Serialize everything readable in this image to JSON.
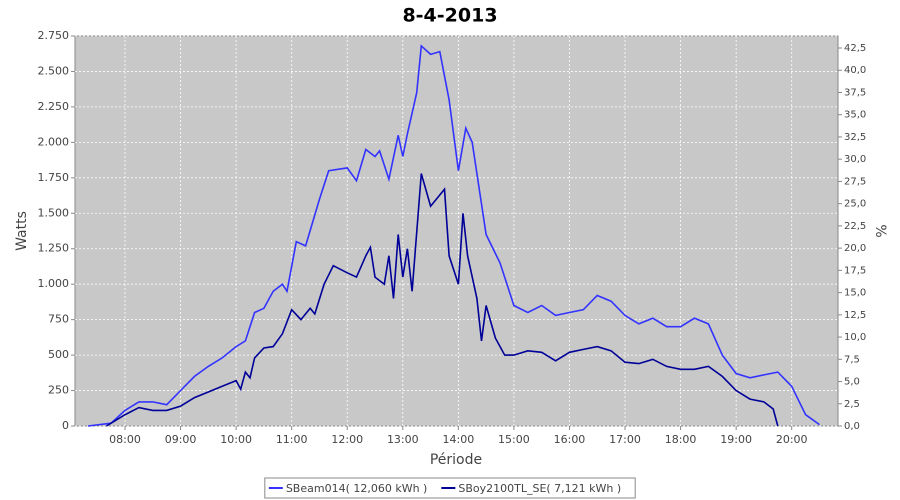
{
  "chart_data": {
    "type": "line",
    "title": "8-4-2013",
    "x_label": "Période",
    "y_label": "Watts",
    "y2_label": "%",
    "xlim": [
      "07:06",
      "20:50"
    ],
    "xticks": [
      "08:00",
      "09:00",
      "10:00",
      "11:00",
      "12:00",
      "13:00",
      "14:00",
      "15:00",
      "16:00",
      "17:00",
      "18:00",
      "19:00",
      "20:00"
    ],
    "ylim": [
      0,
      2750
    ],
    "yticks": [
      0,
      250,
      500,
      750,
      {
        "value": 1000,
        "label": "1.000"
      },
      {
        "value": 1250,
        "label": "1.250"
      },
      {
        "value": 1500,
        "label": "1.500"
      },
      {
        "value": 1750,
        "label": "1.750"
      },
      {
        "value": 2000,
        "label": "2.000"
      },
      {
        "value": 2250,
        "label": "2.250"
      },
      {
        "value": 2500,
        "label": "2.500"
      },
      {
        "value": 2750,
        "label": "2.750"
      }
    ],
    "y2lim": [
      0,
      43.85
    ],
    "y2ticks": [
      {
        "value": 0,
        "label": "0,0"
      },
      {
        "value": 2.5,
        "label": "2,5"
      },
      {
        "value": 5,
        "label": "5,0"
      },
      {
        "value": 7.5,
        "label": "7,5"
      },
      {
        "value": 10,
        "label": "10,0"
      },
      {
        "value": 12.5,
        "label": "12,5"
      },
      {
        "value": 15,
        "label": "15,0"
      },
      {
        "value": 17.5,
        "label": "17,5"
      },
      {
        "value": 20,
        "label": "20,0"
      },
      {
        "value": 22.5,
        "label": "22,5"
      },
      {
        "value": 25,
        "label": "25,0"
      },
      {
        "value": 27.5,
        "label": "27,5"
      },
      {
        "value": 30,
        "label": "30,0"
      },
      {
        "value": 32.5,
        "label": "32,5"
      },
      {
        "value": 35,
        "label": "35,0"
      },
      {
        "value": 37.5,
        "label": "37,5"
      },
      {
        "value": 40,
        "label": "40,0"
      },
      {
        "value": 42.5,
        "label": "42,5"
      }
    ],
    "grid": true,
    "legend": "bottom",
    "series": [
      {
        "name": "SBeam014( 12,060 kWh )",
        "color": "#3333ff",
        "x": [
          "07:20",
          "07:45",
          "08:00",
          "08:15",
          "08:30",
          "08:45",
          "09:00",
          "09:15",
          "09:30",
          "09:45",
          "10:00",
          "10:10",
          "10:20",
          "10:30",
          "10:40",
          "10:50",
          "10:55",
          "11:05",
          "11:15",
          "11:30",
          "11:40",
          "12:00",
          "12:10",
          "12:20",
          "12:30",
          "12:35",
          "12:45",
          "12:55",
          "13:00",
          "13:05",
          "13:15",
          "13:20",
          "13:30",
          "13:40",
          "13:50",
          "14:00",
          "14:08",
          "14:15",
          "14:30",
          "14:45",
          "15:00",
          "15:15",
          "15:30",
          "15:45",
          "16:00",
          "16:15",
          "16:30",
          "16:45",
          "17:00",
          "17:15",
          "17:30",
          "17:45",
          "18:00",
          "18:15",
          "18:30",
          "18:45",
          "19:00",
          "19:15",
          "19:30",
          "19:45",
          "20:00",
          "20:15",
          "20:30"
        ],
        "values": [
          0,
          20,
          110,
          170,
          170,
          150,
          250,
          350,
          420,
          480,
          560,
          600,
          800,
          830,
          950,
          1000,
          950,
          1300,
          1270,
          1600,
          1800,
          1820,
          1730,
          1950,
          1900,
          1940,
          1740,
          2050,
          1900,
          2060,
          2350,
          2680,
          2620,
          2640,
          2300,
          1800,
          2100,
          2000,
          1350,
          1150,
          850,
          800,
          850,
          780,
          800,
          820,
          920,
          880,
          780,
          720,
          760,
          700,
          700,
          760,
          720,
          500,
          370,
          340,
          360,
          380,
          280,
          80,
          10
        ]
      },
      {
        "name": "SBoy2100TL_SE( 7,121 kWh )",
        "color": "#000099",
        "x": [
          "07:40",
          "08:00",
          "08:15",
          "08:30",
          "08:45",
          "09:00",
          "09:15",
          "09:30",
          "09:45",
          "10:00",
          "10:05",
          "10:10",
          "10:15",
          "10:20",
          "10:30",
          "10:40",
          "10:50",
          "11:00",
          "11:10",
          "11:20",
          "11:25",
          "11:35",
          "11:45",
          "12:00",
          "12:10",
          "12:20",
          "12:25",
          "12:30",
          "12:40",
          "12:45",
          "12:50",
          "12:55",
          "13:00",
          "13:05",
          "13:10",
          "13:20",
          "13:30",
          "13:45",
          "13:50",
          "14:00",
          "14:05",
          "14:10",
          "14:20",
          "14:25",
          "14:30",
          "14:40",
          "14:50",
          "15:00",
          "15:15",
          "15:30",
          "15:45",
          "16:00",
          "16:15",
          "16:30",
          "16:45",
          "17:00",
          "17:15",
          "17:30",
          "17:45",
          "18:00",
          "18:15",
          "18:30",
          "18:45",
          "19:00",
          "19:15",
          "19:30",
          "19:40",
          "19:45"
        ],
        "values": [
          0,
          80,
          130,
          110,
          110,
          140,
          200,
          240,
          280,
          320,
          260,
          380,
          340,
          480,
          550,
          560,
          650,
          820,
          750,
          830,
          790,
          1000,
          1130,
          1080,
          1050,
          1200,
          1260,
          1050,
          1000,
          1200,
          900,
          1350,
          1050,
          1250,
          950,
          1780,
          1550,
          1670,
          1200,
          1000,
          1500,
          1200,
          900,
          600,
          850,
          620,
          500,
          500,
          530,
          520,
          460,
          520,
          540,
          560,
          530,
          450,
          440,
          470,
          420,
          400,
          400,
          420,
          350,
          250,
          190,
          170,
          120,
          0
        ]
      }
    ]
  }
}
